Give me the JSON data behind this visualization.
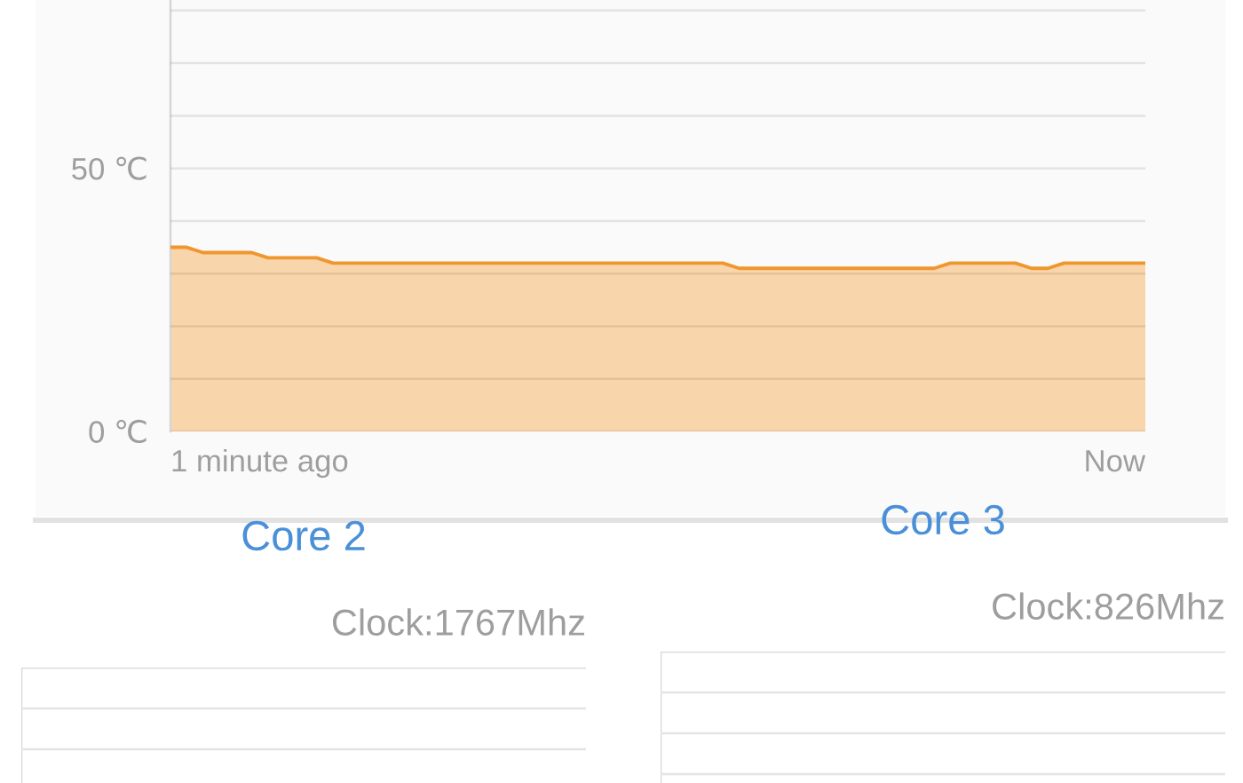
{
  "chart_data": [
    {
      "type": "area",
      "categories": [
        null,
        null,
        null,
        null,
        null,
        null,
        null,
        null,
        null,
        null,
        null,
        null,
        null,
        null,
        null,
        null,
        null,
        null,
        null,
        null,
        null,
        null,
        null,
        null,
        null,
        null,
        null,
        null,
        null,
        null,
        null,
        null,
        null,
        null,
        null,
        null,
        null,
        null,
        null,
        null,
        null,
        null,
        null,
        null,
        null,
        null,
        null,
        null,
        null,
        null,
        null,
        null,
        null,
        null,
        null,
        null,
        null,
        null,
        null,
        null,
        null
      ],
      "values": [
        35,
        35,
        34,
        34,
        34,
        34,
        33,
        33,
        33,
        33,
        32,
        32,
        32,
        32,
        32,
        32,
        32,
        32,
        32,
        32,
        32,
        32,
        32,
        32,
        32,
        32,
        32,
        32,
        32,
        32,
        32,
        32,
        32,
        32,
        32,
        31,
        31,
        31,
        31,
        31,
        31,
        31,
        31,
        31,
        31,
        31,
        31,
        31,
        32,
        32,
        32,
        32,
        32,
        31,
        31,
        32,
        32,
        32,
        32,
        32,
        32
      ],
      "color": "#f0962e",
      "ylim": [
        0,
        82
      ],
      "yticks": [
        {
          "value": 0,
          "label": "0 ℃"
        },
        {
          "value": 10,
          "label": null
        },
        {
          "value": 20,
          "label": null
        },
        {
          "value": 30,
          "label": null
        },
        {
          "value": 40,
          "label": null
        },
        {
          "value": 50,
          "label": "50 ℃"
        },
        {
          "value": 60,
          "label": null
        },
        {
          "value": 70,
          "label": null
        },
        {
          "value": 80,
          "label": null
        }
      ],
      "tick_labels": "y",
      "grid": "y",
      "annotations": [
        "1 minute ago",
        "Now"
      ]
    },
    {
      "type": "other",
      "title": "Core 2",
      "subtitle": "Clock:1767Mhz"
    },
    {
      "type": "other",
      "title": "Core 3",
      "subtitle": "Clock:826Mhz"
    }
  ]
}
